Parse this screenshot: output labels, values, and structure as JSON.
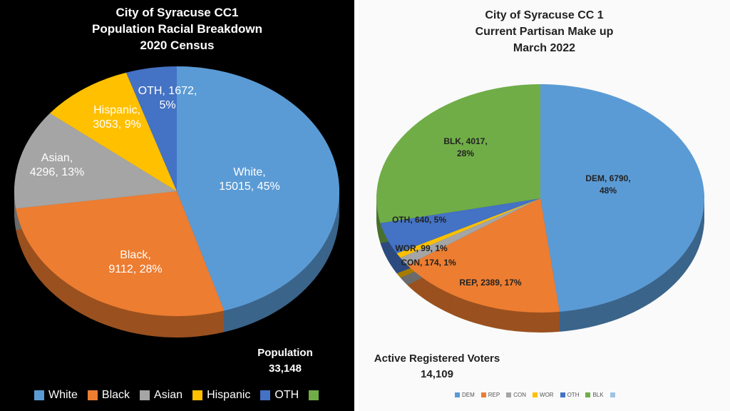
{
  "chart_data": [
    {
      "type": "pie",
      "title": [
        "City of Syracuse CC1",
        "Population Racial Breakdown",
        "2020 Census"
      ],
      "categories": [
        "White",
        "Black",
        "Asian",
        "Hispanic",
        "OTH"
      ],
      "values": [
        15015,
        9112,
        4296,
        3053,
        1672
      ],
      "percents": [
        "45%",
        "28%",
        "13%",
        "9%",
        "5%"
      ],
      "colors": [
        "#5b9bd5",
        "#ed7d31",
        "#a5a5a5",
        "#ffc000",
        "#4472c4"
      ],
      "legend_extra_color": "#70ad47",
      "total_label": "Population",
      "total": "33,148",
      "legend": "bottom",
      "data_labels": [
        "White,|15015, 45%",
        "Black,|9112, 28%",
        "Asian,|4296, 13%",
        "Hispanic,|3053, 9%",
        "OTH, 1672,|5%"
      ]
    },
    {
      "type": "pie",
      "title": [
        "City of Syracuse CC 1",
        "Current Partisan Make up",
        "March 2022"
      ],
      "categories": [
        "DEM",
        "REP",
        "CON",
        "WOR",
        "OTH",
        "BLK"
      ],
      "values": [
        6790,
        2389,
        174,
        99,
        640,
        4017
      ],
      "percents": [
        "48%",
        "17%",
        "1%",
        "1%",
        "5%",
        "28%"
      ],
      "colors": [
        "#5b9bd5",
        "#ed7d31",
        "#a5a5a5",
        "#ffc000",
        "#4472c4",
        "#70ad47"
      ],
      "legend_extra_color": "#9dc3e6",
      "total_label": "Active Registered Voters",
      "total": "14,109",
      "legend": "bottom",
      "data_labels": [
        "DEM, 6790,|48%",
        "REP, 2389, 17%",
        "CON, 174, 1%",
        "WOR, 99, 1%",
        "OTH, 640, 5%",
        "BLK, 4017,|28%"
      ]
    }
  ]
}
